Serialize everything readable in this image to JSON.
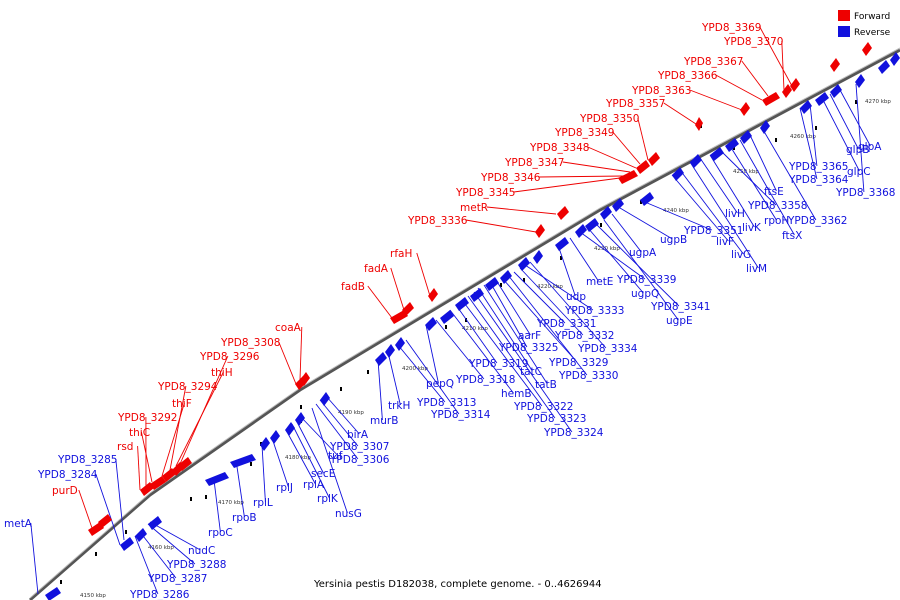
{
  "caption": "Yersinia pestis D182038, complete genome. - 0..4626944",
  "legend": {
    "forward": "Forward",
    "reverse": "Reverse",
    "forward_color": "#ee0000",
    "reverse_color": "#1111dd"
  },
  "ticks": [
    "4150 kbp",
    "4160 kbp",
    "4170 kbp",
    "4180 kbp",
    "4190 kbp",
    "4200 kbp",
    "4210 kbp",
    "4220 kbp",
    "4230 kbp",
    "4240 kbp",
    "4250 kbp",
    "4260 kbp",
    "4270 kbp"
  ],
  "forward_labels": [
    "purD",
    "rsd",
    "YPD8_3292",
    "thiC",
    "thiF",
    "YPD8_3294",
    "thiH",
    "YPD8_3296",
    "YPD8_3308",
    "coaA",
    "fadB",
    "fadA",
    "rfaH",
    "YPD8_3336",
    "metR",
    "YPD8_3345",
    "YPD8_3346",
    "YPD8_3347",
    "YPD8_3348",
    "YPD8_3349",
    "YPD8_3350",
    "YPD8_3357",
    "YPD8_3363",
    "YPD8_3366",
    "YPD8_3367",
    "YPD8_3370",
    "YPD8_3369"
  ],
  "reverse_labels": [
    "metA",
    "YPD8_3284",
    "YPD8_3285",
    "YPD8_3286",
    "YPD8_3287",
    "YPD8_3288",
    "nudC",
    "rpoC",
    "rpoB",
    "rplL",
    "rplJ",
    "rplA",
    "rplK",
    "secE",
    "tuf",
    "nusG",
    "YPD8_3306",
    "YPD8_3307",
    "birA",
    "murB",
    "trkH",
    "YPD8_3313",
    "YPD8_3314",
    "pepQ",
    "YPD8_3318",
    "hemB",
    "YPD8_3319",
    "YPD8_3322",
    "YPD8_3323",
    "YPD8_3324",
    "tatC",
    "tatB",
    "YPD8_3325",
    "aarF",
    "YPD8_3329",
    "YPD8_3330",
    "YPD8_3331",
    "YPD8_3332",
    "YPD8_3333",
    "YPD8_3334",
    "udp",
    "metE",
    "YPD8_3339",
    "ugpQ",
    "YPD8_3341",
    "ugpE",
    "ugpA",
    "ugpB",
    "YPD8_3351",
    "livF",
    "livG",
    "livM",
    "livH",
    "livK",
    "YPD8_3358",
    "rpoH",
    "ftsX",
    "ftsE",
    "YPD8_3362",
    "YPD8_3364",
    "YPD8_3365",
    "glpC",
    "glpB",
    "glpA",
    "YPD8_3368"
  ]
}
